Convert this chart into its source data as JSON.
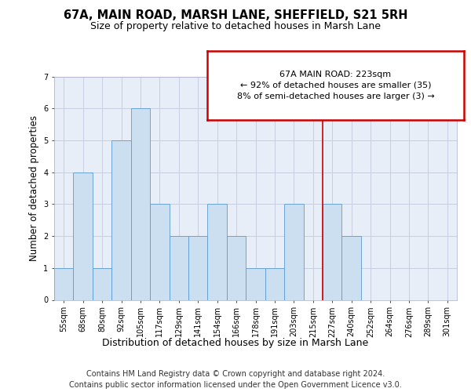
{
  "title": "67A, MAIN ROAD, MARSH LANE, SHEFFIELD, S21 5RH",
  "subtitle": "Size of property relative to detached houses in Marsh Lane",
  "xlabel": "Distribution of detached houses by size in Marsh Lane",
  "ylabel": "Number of detached properties",
  "categories": [
    "55sqm",
    "68sqm",
    "80sqm",
    "92sqm",
    "105sqm",
    "117sqm",
    "129sqm",
    "141sqm",
    "154sqm",
    "166sqm",
    "178sqm",
    "191sqm",
    "203sqm",
    "215sqm",
    "227sqm",
    "240sqm",
    "252sqm",
    "264sqm",
    "276sqm",
    "289sqm",
    "301sqm"
  ],
  "bar_heights": [
    1,
    4,
    1,
    5,
    6,
    3,
    2,
    2,
    3,
    2,
    1,
    1,
    3,
    0,
    3,
    2,
    0,
    0,
    0,
    0,
    0
  ],
  "bar_color": "#ccdff0",
  "bar_edge_color": "#5b9bd5",
  "grid_color": "#c8cfe0",
  "bg_color": "#e8eef8",
  "red_line_x": 13.5,
  "red_line_color": "#cc0000",
  "annotation_line1": "67A MAIN ROAD: 223sqm",
  "annotation_line2": "← 92% of detached houses are smaller (35)",
  "annotation_line3": "8% of semi-detached houses are larger (3) →",
  "annotation_box_edgecolor": "#cc0000",
  "ylim_max": 7,
  "yticks": [
    0,
    1,
    2,
    3,
    4,
    5,
    6,
    7
  ],
  "footer_line1": "Contains HM Land Registry data © Crown copyright and database right 2024.",
  "footer_line2": "Contains public sector information licensed under the Open Government Licence v3.0.",
  "title_fontsize": 10.5,
  "subtitle_fontsize": 9,
  "ylabel_fontsize": 8.5,
  "xlabel_fontsize": 9,
  "tick_fontsize": 7,
  "annotation_fontsize": 8,
  "footer_fontsize": 7
}
